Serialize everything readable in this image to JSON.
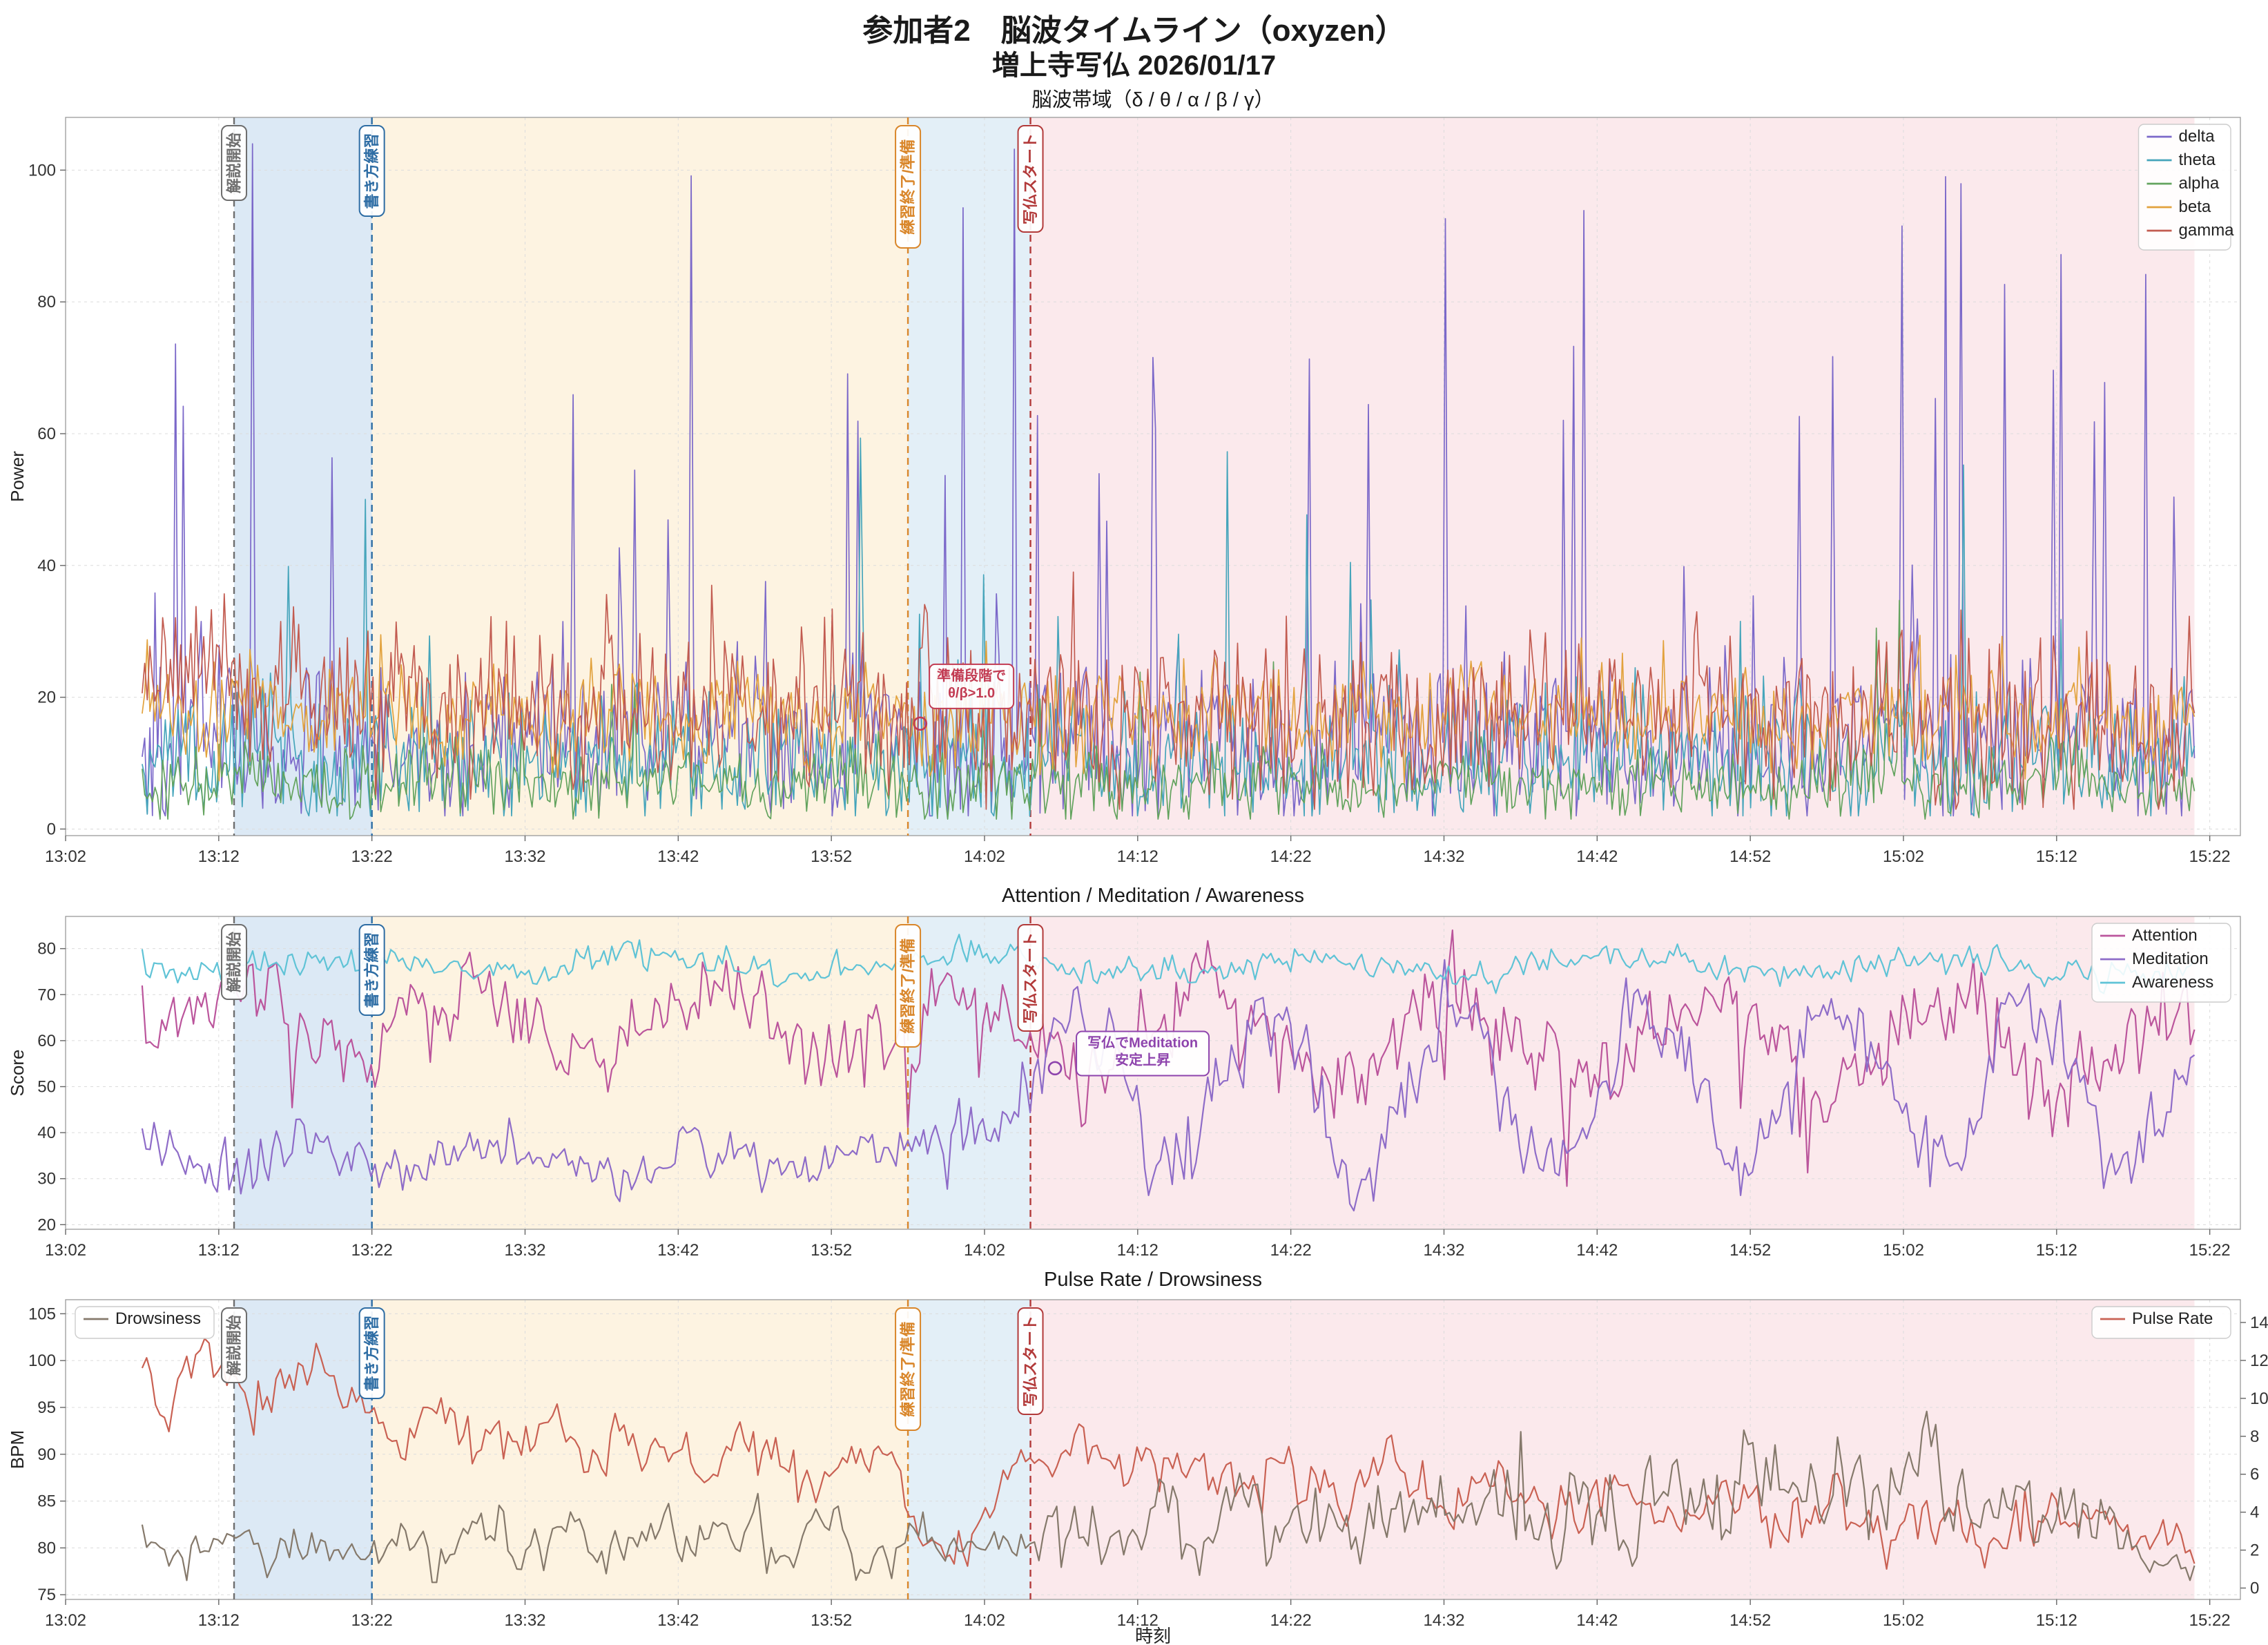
{
  "header": {
    "title_line1": "参加者2　脳波タイムライン（oxyzen）",
    "title_line2": "増上寺写仏 2026/01/17"
  },
  "timeline": {
    "x_min": 0,
    "x_max": 142,
    "data_t0": 5,
    "data_t1": 139,
    "xlabel": "時刻",
    "x_ticks": [
      {
        "t": 0,
        "label": "13:02"
      },
      {
        "t": 10,
        "label": "13:12"
      },
      {
        "t": 20,
        "label": "13:22"
      },
      {
        "t": 30,
        "label": "13:32"
      },
      {
        "t": 40,
        "label": "13:42"
      },
      {
        "t": 50,
        "label": "13:52"
      },
      {
        "t": 60,
        "label": "14:02"
      },
      {
        "t": 70,
        "label": "14:12"
      },
      {
        "t": 80,
        "label": "14:22"
      },
      {
        "t": 90,
        "label": "14:32"
      },
      {
        "t": 100,
        "label": "14:42"
      },
      {
        "t": 110,
        "label": "14:52"
      },
      {
        "t": 120,
        "label": "15:02"
      },
      {
        "t": 130,
        "label": "15:12"
      },
      {
        "t": 140,
        "label": "15:22"
      }
    ],
    "phases": [
      {
        "label": "解説開始",
        "t": 11,
        "color": "#6e6e6e"
      },
      {
        "label": "書き方練習",
        "t": 20,
        "color": "#2e6da4"
      },
      {
        "label": "練習終了/準備",
        "t": 55,
        "color": "#d9862a"
      },
      {
        "label": "写仏スタート",
        "t": 63,
        "color": "#b23a3a"
      }
    ],
    "regions": [
      {
        "t0": 11,
        "t1": 20,
        "color": "#dce9f5"
      },
      {
        "t0": 20,
        "t1": 55,
        "color": "#fdf3e1"
      },
      {
        "t0": 55,
        "t1": 63,
        "color": "#e3eff7"
      },
      {
        "t0": 63,
        "t1": 139,
        "color": "#fbe9ec"
      }
    ]
  },
  "chart_data": [
    {
      "type": "line",
      "title": "脳波帯域（δ / θ / α / β / γ）",
      "ylabel": "Power",
      "y_domain": [
        -1,
        108
      ],
      "n_points": 800,
      "line_width": 1.7,
      "y_ticks": [
        {
          "v": 0,
          "label": "0"
        },
        {
          "v": 20,
          "label": "20"
        },
        {
          "v": 40,
          "label": "40"
        },
        {
          "v": 60,
          "label": "60"
        },
        {
          "v": 80,
          "label": "80"
        },
        {
          "v": 100,
          "label": "100"
        }
      ],
      "legends": [
        {
          "position": "top-right",
          "names": [
            "delta",
            "theta",
            "alpha",
            "beta",
            "gamma"
          ]
        }
      ],
      "series": [
        {
          "name": "delta",
          "color": "#7b68c9",
          "seed": 101,
          "clip": [
            2,
            104
          ],
          "period": 11,
          "segments": [
            {
              "t0": 5,
              "t1": 140,
              "b0": 13,
              "b1": 13,
              "s": 6,
              "w": 2,
              "p": 0.12,
              "a": 85
            }
          ]
        },
        {
          "name": "theta",
          "color": "#46a5bb",
          "seed": 202,
          "clip": [
            2,
            72
          ],
          "period": 9,
          "segments": [
            {
              "t0": 5,
              "t1": 140,
              "b0": 11,
              "b1": 11,
              "s": 5,
              "w": 1.5,
              "p": 0.06,
              "a": 48
            }
          ]
        },
        {
          "name": "alpha",
          "color": "#63a35e",
          "seed": 303,
          "clip": [
            1.5,
            45
          ],
          "period": 13,
          "segments": [
            {
              "t0": 5,
              "t1": 140,
              "b0": 7,
              "b1": 7,
              "s": 2.6,
              "w": 1,
              "p": 0.04,
              "a": 24
            }
          ]
        },
        {
          "name": "beta",
          "color": "#e2a23d",
          "seed": 404,
          "clip": [
            4,
            48
          ],
          "period": 8,
          "segments": [
            {
              "t0": 5,
              "t1": 140,
              "b0": 17,
              "b1": 17,
              "s": 3.6,
              "w": 1.5,
              "p": 0.03,
              "a": 16
            }
          ]
        },
        {
          "name": "gamma",
          "color": "#c25b50",
          "seed": 505,
          "clip": [
            3,
            60
          ],
          "period": 7,
          "segments": [
            {
              "t0": 5,
              "t1": 20,
              "b0": 23,
              "b1": 20,
              "s": 6.5,
              "w": 2,
              "p": 0.04,
              "a": 22
            },
            {
              "t0": 20,
              "t1": 140,
              "b0": 18,
              "b1": 16,
              "s": 6,
              "w": 2,
              "p": 0.04,
              "a": 22
            }
          ]
        }
      ],
      "annotation": {
        "lines": [
          "準備段階で",
          "θ/β>1.0"
        ],
        "box": [
          56.4,
          25
        ],
        "point": [
          55.8,
          16
        ],
        "color": "#c23b52"
      }
    },
    {
      "type": "line",
      "title": "Attention / Meditation / Awareness",
      "ylabel": "Score",
      "y_domain": [
        19,
        87
      ],
      "n_points": 520,
      "line_width": 2.2,
      "y_ticks": [
        {
          "v": 20,
          "label": "20"
        },
        {
          "v": 30,
          "label": "30"
        },
        {
          "v": 40,
          "label": "40"
        },
        {
          "v": 50,
          "label": "50"
        },
        {
          "v": 60,
          "label": "60"
        },
        {
          "v": 70,
          "label": "70"
        },
        {
          "v": 80,
          "label": "80"
        }
      ],
      "legends": [
        {
          "position": "top-right",
          "names": [
            "Attention",
            "Meditation",
            "Awareness"
          ]
        }
      ],
      "series": [
        {
          "name": "Attention",
          "color": "#bb559c",
          "seed": 606,
          "clip": [
            24,
            84
          ],
          "period": 16,
          "smooth": 0.3,
          "segments": [
            {
              "t0": 5,
              "t1": 63,
              "b0": 65,
              "b1": 63,
              "s": 6,
              "w": 7,
              "p": 0.04,
              "a": -32
            },
            {
              "t0": 63,
              "t1": 140,
              "b0": 62,
              "b1": 60,
              "s": 7,
              "w": 9,
              "p": 0.05,
              "a": -30
            }
          ]
        },
        {
          "name": "Meditation",
          "color": "#8e6cc8",
          "seed": 707,
          "clip": [
            22,
            84
          ],
          "period": 12.5,
          "smooth": 0.35,
          "segments": [
            {
              "t0": 5,
              "t1": 55,
              "b0": 35,
              "b1": 35,
              "s": 4.5,
              "w": 3,
              "p": 0.02,
              "a": 34
            },
            {
              "t0": 55,
              "t1": 63,
              "b0": 40,
              "b1": 48,
              "s": 7,
              "w": 4
            },
            {
              "t0": 63,
              "t1": 140,
              "b0": 50,
              "b1": 50,
              "s": 7,
              "w": 17,
              "p": 0.02,
              "a": 18
            }
          ]
        },
        {
          "name": "Awareness",
          "color": "#5fc3d6",
          "seed": 808,
          "clip": [
            66,
            86
          ],
          "period": 21,
          "smooth": 0.3,
          "segments": [
            {
              "t0": 5,
              "t1": 140,
              "b0": 77,
              "b1": 76,
              "s": 2.2,
              "w": 1.5
            }
          ]
        }
      ],
      "annotation": {
        "lines": [
          "写仏でMeditation",
          "安定上昇"
        ],
        "box": [
          66,
          62
        ],
        "point": [
          64.6,
          54
        ],
        "color": "#8e44ad"
      }
    },
    {
      "type": "line",
      "title": "Pulse Rate / Drowsiness",
      "ylabel": "BPM",
      "ylabel_right": "Drowsiness",
      "y_domain": [
        74.5,
        106.5
      ],
      "y_domain_right": [
        -0.6,
        15.2
      ],
      "n_points": 460,
      "line_width": 2.2,
      "show_xlabel": true,
      "y_ticks": [
        {
          "v": 75,
          "label": "75"
        },
        {
          "v": 80,
          "label": "80"
        },
        {
          "v": 85,
          "label": "85"
        },
        {
          "v": 90,
          "label": "90"
        },
        {
          "v": 95,
          "label": "95"
        },
        {
          "v": 100,
          "label": "100"
        },
        {
          "v": 105,
          "label": "105"
        }
      ],
      "y_ticks_right": [
        {
          "v": 0,
          "label": "0"
        },
        {
          "v": 2,
          "label": "2"
        },
        {
          "v": 4,
          "label": "4"
        },
        {
          "v": 6,
          "label": "6"
        },
        {
          "v": 8,
          "label": "8"
        },
        {
          "v": 10,
          "label": "10"
        },
        {
          "v": 12,
          "label": "12"
        },
        {
          "v": 14,
          "label": "14"
        }
      ],
      "legends": [
        {
          "position": "top-left",
          "names": [
            "Drowsiness"
          ]
        },
        {
          "position": "top-right",
          "names": [
            "Pulse Rate"
          ]
        }
      ],
      "series": [
        {
          "name": "Pulse Rate",
          "color": "#c96153",
          "seed": 909,
          "clip": [
            74.5,
            105.5
          ],
          "period": 7,
          "smooth": 0.35,
          "segments": [
            {
              "t0": 5,
              "t1": 19,
              "b0": 98,
              "b1": 97,
              "s": 2.2,
              "w": 1.5
            },
            {
              "t0": 19,
              "t1": 23,
              "b0": 94,
              "b1": 92,
              "s": 2
            },
            {
              "t0": 23,
              "t1": 42,
              "b0": 93,
              "b1": 90,
              "s": 2.4,
              "w": 1.5,
              "p": 0.02,
              "a": 6
            },
            {
              "t0": 42,
              "t1": 55,
              "b0": 90,
              "b1": 87,
              "s": 2.4,
              "w": 1.5
            },
            {
              "t0": 55,
              "t1": 59,
              "b0": 83,
              "b1": 78,
              "s": 1.8
            },
            {
              "t0": 59,
              "t1": 63,
              "b0": 82,
              "b1": 90,
              "s": 2
            },
            {
              "t0": 63,
              "t1": 72,
              "b0": 91,
              "b1": 88,
              "s": 2.4,
              "p": 0.03,
              "a": 9
            },
            {
              "t0": 72,
              "t1": 100,
              "b0": 88,
              "b1": 85,
              "s": 2.4,
              "w": 1.5,
              "p": 0.01,
              "a": 6
            },
            {
              "t0": 100,
              "t1": 130,
              "b0": 85,
              "b1": 82,
              "s": 2.4,
              "w": 1.5
            },
            {
              "t0": 130,
              "t1": 140,
              "b0": 83,
              "b1": 80,
              "s": 2.2
            }
          ]
        },
        {
          "name": "Drowsiness",
          "color": "#85796b",
          "seed": 1010,
          "axis": "right",
          "clip": [
            0.3,
            14.6
          ],
          "period": 5.5,
          "smooth": 0.3,
          "segments": [
            {
              "t0": 5,
              "t1": 20,
              "b0": 2,
              "b1": 2.2,
              "s": 0.7,
              "w": 0.5
            },
            {
              "t0": 20,
              "t1": 56,
              "b0": 2.4,
              "b1": 2.8,
              "s": 1.1,
              "w": 0.7,
              "p": 0.02,
              "a": 4
            },
            {
              "t0": 56,
              "t1": 63,
              "b0": 2,
              "b1": 2.5,
              "s": 0.8
            },
            {
              "t0": 63,
              "t1": 95,
              "b0": 3,
              "b1": 4,
              "s": 1.5,
              "w": 0.9,
              "p": 0.03,
              "a": 5
            },
            {
              "t0": 95,
              "t1": 125,
              "b0": 4.5,
              "b1": 5.5,
              "s": 1.9,
              "w": 1,
              "p": 0.04,
              "a": 7
            },
            {
              "t0": 125,
              "t1": 134,
              "b0": 5,
              "b1": 3.5,
              "s": 1.5
            },
            {
              "t0": 134,
              "t1": 140,
              "b0": 2.5,
              "b1": 1,
              "s": 0.8
            }
          ]
        }
      ]
    }
  ]
}
